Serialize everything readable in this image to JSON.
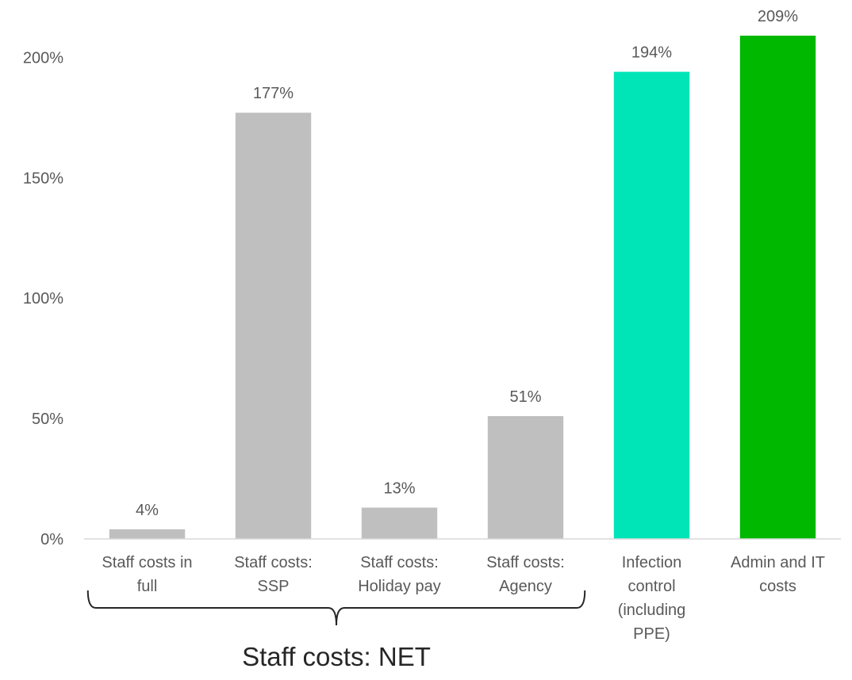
{
  "chart_data": {
    "type": "bar",
    "categories": [
      [
        "Staff costs in",
        "full"
      ],
      [
        "Staff costs:",
        "SSP"
      ],
      [
        "Staff costs:",
        "Holiday pay"
      ],
      [
        "Staff costs:",
        "Agency"
      ],
      [
        "Infection",
        "control",
        "(including",
        "PPE)"
      ],
      [
        "Admin and IT",
        "costs"
      ]
    ],
    "values": [
      4,
      177,
      13,
      51,
      194,
      209
    ],
    "data_labels": [
      "4%",
      "177%",
      "13%",
      "51%",
      "194%",
      "209%"
    ],
    "colors": [
      "#bfbfbf",
      "#bfbfbf",
      "#bfbfbf",
      "#bfbfbf",
      "#00e5b8",
      "#00b800"
    ],
    "ylim": [
      0,
      209
    ],
    "yticks": [
      0,
      50,
      100,
      150,
      200
    ],
    "ytick_labels": [
      "0%",
      "50%",
      "100%",
      "150%",
      "200%"
    ],
    "grid": false,
    "group_bracket": {
      "label": "Staff costs: NET",
      "spans_categories": [
        0,
        3
      ]
    }
  }
}
